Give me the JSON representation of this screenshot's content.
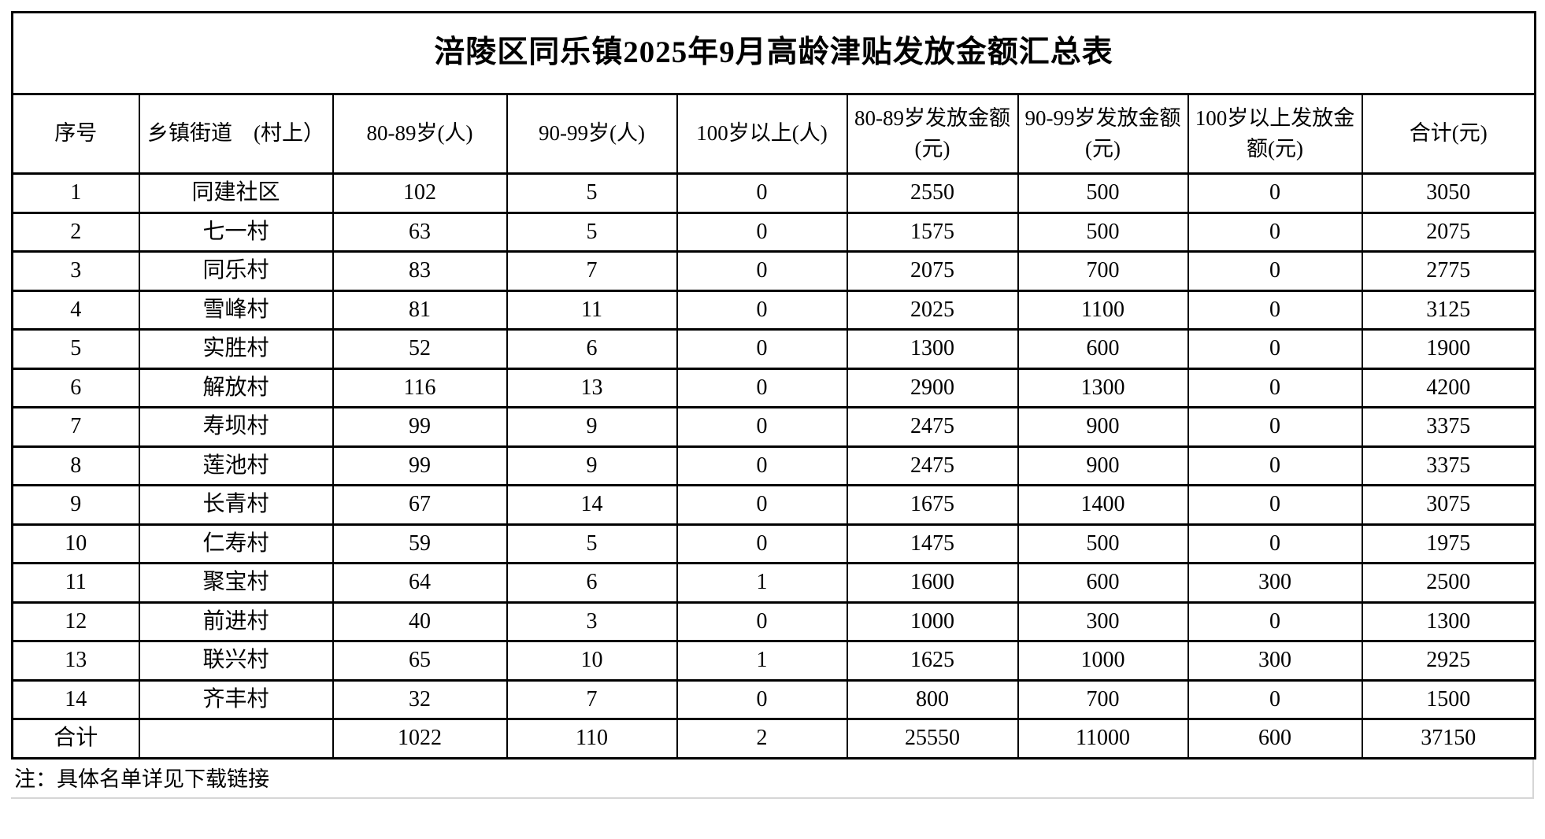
{
  "title": "涪陵区同乐镇2025年9月高龄津贴发放金额汇总表",
  "table": {
    "headers": [
      "序号",
      "乡镇街道　(村上）",
      "80-89岁(人)",
      "90-99岁(人)",
      "100岁以上(人)",
      "80-89岁发放金额(元)",
      "90-99岁发放金额(元)",
      "100岁以上发放金额(元)",
      "合计(元)"
    ],
    "rows": [
      [
        "1",
        "同建社区",
        "102",
        "5",
        "0",
        "2550",
        "500",
        "0",
        "3050"
      ],
      [
        "2",
        "七一村",
        "63",
        "5",
        "0",
        "1575",
        "500",
        "0",
        "2075"
      ],
      [
        "3",
        "同乐村",
        "83",
        "7",
        "0",
        "2075",
        "700",
        "0",
        "2775"
      ],
      [
        "4",
        "雪峰村",
        "81",
        "11",
        "0",
        "2025",
        "1100",
        "0",
        "3125"
      ],
      [
        "5",
        "实胜村",
        "52",
        "6",
        "0",
        "1300",
        "600",
        "0",
        "1900"
      ],
      [
        "6",
        "解放村",
        "116",
        "13",
        "0",
        "2900",
        "1300",
        "0",
        "4200"
      ],
      [
        "7",
        "寿坝村",
        "99",
        "9",
        "0",
        "2475",
        "900",
        "0",
        "3375"
      ],
      [
        "8",
        "莲池村",
        "99",
        "9",
        "0",
        "2475",
        "900",
        "0",
        "3375"
      ],
      [
        "9",
        "长青村",
        "67",
        "14",
        "0",
        "1675",
        "1400",
        "0",
        "3075"
      ],
      [
        "10",
        "仁寿村",
        "59",
        "5",
        "0",
        "1475",
        "500",
        "0",
        "1975"
      ],
      [
        "11",
        "聚宝村",
        "64",
        "6",
        "1",
        "1600",
        "600",
        "300",
        "2500"
      ],
      [
        "12",
        "前进村",
        "40",
        "3",
        "0",
        "1000",
        "300",
        "0",
        "1300"
      ],
      [
        "13",
        "联兴村",
        "65",
        "10",
        "1",
        "1625",
        "1000",
        "300",
        "2925"
      ],
      [
        "14",
        "齐丰村",
        "32",
        "7",
        "0",
        "800",
        "700",
        "0",
        "1500"
      ]
    ],
    "total_row": [
      "合计",
      "",
      "1022",
      "110",
      "2",
      "25550",
      "11000",
      "600",
      "37150"
    ]
  },
  "note": "注：具体名单详见下载链接"
}
